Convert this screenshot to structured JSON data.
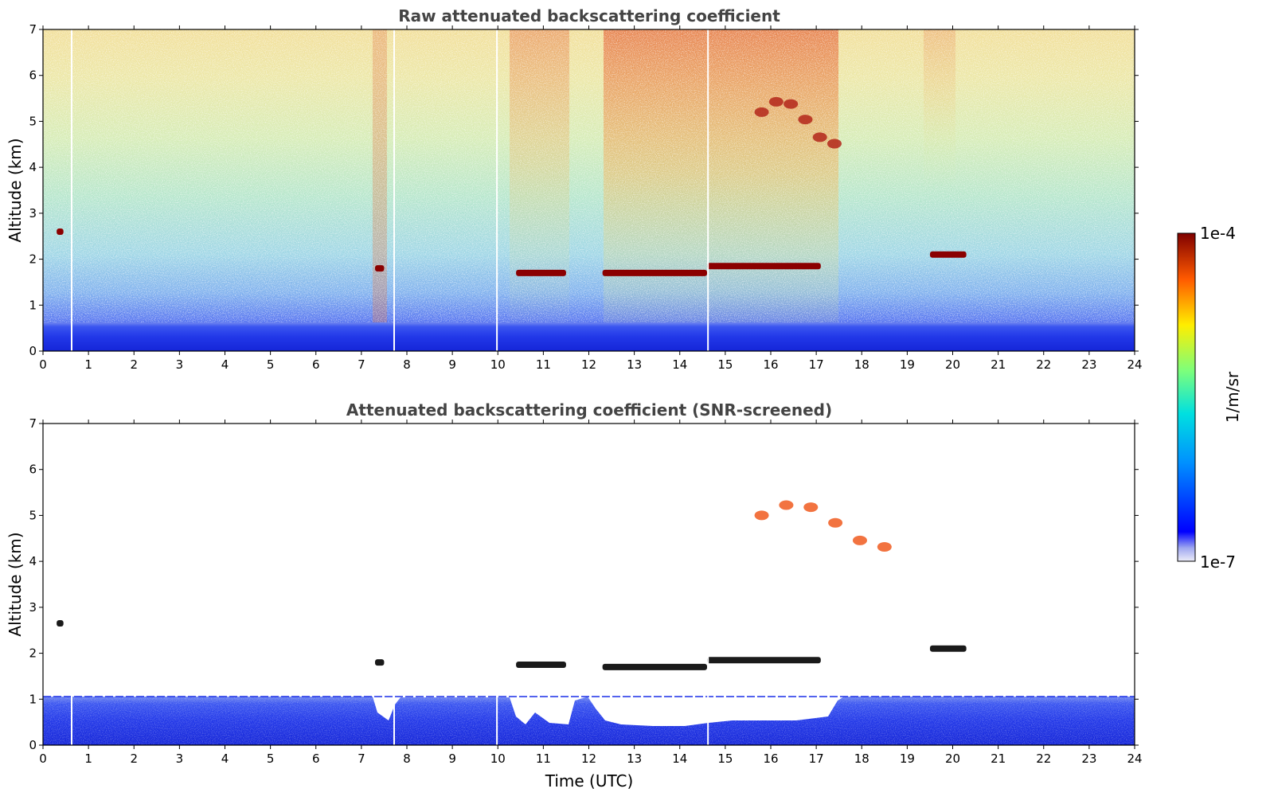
{
  "chart_data": [
    {
      "type": "heatmap",
      "title": "Raw attenuated backscattering coefficient",
      "xlabel": "",
      "ylabel": "Altitude (km)",
      "xlim": [
        0,
        24
      ],
      "ylim": [
        0,
        7
      ],
      "xticks": [
        "0",
        "1",
        "2",
        "3",
        "4",
        "5",
        "6",
        "7",
        "8",
        "9",
        "10",
        "11",
        "12",
        "13",
        "14",
        "15",
        "16",
        "17",
        "18",
        "19",
        "20",
        "21",
        "22",
        "23",
        "24"
      ],
      "yticks": [
        "0",
        "1",
        "2",
        "3",
        "4",
        "5",
        "6",
        "7"
      ],
      "cloud_layers": [
        {
          "t_start": 0.3,
          "t_end": 0.45,
          "alt_km": 2.6
        },
        {
          "t_start": 7.3,
          "t_end": 7.5,
          "alt_km": 1.8
        },
        {
          "t_start": 10.4,
          "t_end": 11.5,
          "alt_km": 1.7
        },
        {
          "t_start": 12.3,
          "t_end": 14.6,
          "alt_km": 1.7
        },
        {
          "t_start": 14.6,
          "t_end": 17.1,
          "alt_km": 1.85
        },
        {
          "t_start": 19.5,
          "t_end": 20.3,
          "alt_km": 2.1
        },
        {
          "t_start": 15.8,
          "t_end": 17.4,
          "alt_km": 5.2
        }
      ]
    },
    {
      "type": "heatmap",
      "title": "Attenuated backscattering coefficient (SNR-screened)",
      "xlabel": "Time (UTC)",
      "ylabel": "Altitude (km)",
      "xlim": [
        0,
        24
      ],
      "ylim": [
        0,
        7
      ],
      "xticks": [
        "0",
        "1",
        "2",
        "3",
        "4",
        "5",
        "6",
        "7",
        "8",
        "9",
        "10",
        "11",
        "12",
        "13",
        "14",
        "15",
        "16",
        "17",
        "18",
        "19",
        "20",
        "21",
        "22",
        "23",
        "24"
      ],
      "yticks": [
        "0",
        "1",
        "2",
        "3",
        "4",
        "5",
        "6",
        "7"
      ],
      "cloud_layers": [
        {
          "t_start": 0.3,
          "t_end": 0.45,
          "alt_km": 2.65
        },
        {
          "t_start": 7.3,
          "t_end": 7.5,
          "alt_km": 1.8
        },
        {
          "t_start": 10.4,
          "t_end": 11.5,
          "alt_km": 1.75
        },
        {
          "t_start": 12.3,
          "t_end": 14.6,
          "alt_km": 1.7
        },
        {
          "t_start": 14.6,
          "t_end": 17.1,
          "alt_km": 1.85
        },
        {
          "t_start": 19.5,
          "t_end": 20.3,
          "alt_km": 2.1
        },
        {
          "t_start": 15.8,
          "t_end": 18.5,
          "alt_km": 5.0
        }
      ]
    }
  ],
  "colorbar": {
    "label": "1/m/sr",
    "max_label": "1e-4",
    "min_label": "1e-7",
    "scale": "log",
    "colormap": "jet"
  },
  "colors": {
    "title": "#444444",
    "boundary_layer": "#0a1ef0",
    "cloud": "#8b0000"
  }
}
